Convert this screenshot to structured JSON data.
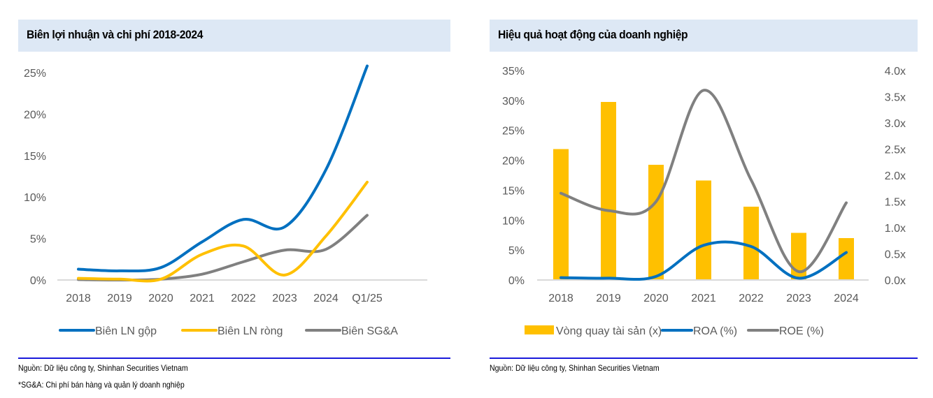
{
  "panels": [
    {
      "title": "Biên lợi nhuận và chi phí 2018-2024",
      "notes": [
        "Nguồn: Dữ liệu công ty, Shinhan Securities Vietnam",
        "*SG&A: Chi phí bán hàng và quản lý doanh nghiệp"
      ]
    },
    {
      "title": "Hiệu quả hoạt động của doanh nghiệp",
      "notes": [
        "Nguồn:  Dữ liệu công ty, Shinhan Securities Vietnam"
      ]
    }
  ],
  "chart_data": [
    {
      "type": "line",
      "title": "Biên lợi nhuận và chi phí 2018-2024",
      "categories": [
        "2018",
        "2019",
        "2020",
        "2021",
        "2022",
        "2023",
        "2024",
        "Q1/25"
      ],
      "yticks": [
        "0%",
        "5%",
        "10%",
        "15%",
        "20%",
        "25%"
      ],
      "ylim": [
        0,
        25
      ],
      "xlabel": "",
      "ylabel": "",
      "grid": false,
      "legend": "bottom",
      "series": [
        {
          "name": "Biên LN gộp",
          "color": "#0070c0",
          "values": [
            1.3,
            1.1,
            1.5,
            4.6,
            7.3,
            6.4,
            13.3,
            25.8
          ]
        },
        {
          "name": "Biên LN ròng",
          "color": "#ffc000",
          "values": [
            0.2,
            0.1,
            0.1,
            3.1,
            4.1,
            0.6,
            5.3,
            11.8
          ]
        },
        {
          "name": "Biên SG&A",
          "color": "#808080",
          "values": [
            0.05,
            0.0,
            0.1,
            0.7,
            2.2,
            3.6,
            3.7,
            7.8
          ]
        }
      ]
    },
    {
      "type": "bar+line",
      "title": "Hiệu quả hoạt động của doanh nghiệp",
      "categories": [
        "2018",
        "2019",
        "2020",
        "2021",
        "2022",
        "2023",
        "2024"
      ],
      "yticks_left": [
        "0%",
        "5%",
        "10%",
        "15%",
        "20%",
        "25%",
        "30%",
        "35%"
      ],
      "ylim_left": [
        0,
        35
      ],
      "yticks_right": [
        "0.0x",
        "0.5x",
        "1.0x",
        "1.5x",
        "2.0x",
        "2.5x",
        "3.0x",
        "3.5x",
        "4.0x"
      ],
      "ylim_right": [
        0,
        4
      ],
      "grid": false,
      "legend": "bottom",
      "series": [
        {
          "name": "Vòng quay tài sản (x)",
          "type": "bar",
          "axis": "right",
          "color": "#ffc000",
          "values": [
            2.5,
            3.4,
            2.2,
            1.9,
            1.4,
            0.9,
            0.8
          ]
        },
        {
          "name": "ROA (%)",
          "type": "line",
          "axis": "left",
          "color": "#0070c0",
          "values": [
            0.4,
            0.3,
            0.6,
            5.8,
            5.6,
            0.3,
            4.6
          ]
        },
        {
          "name": "ROE (%)",
          "type": "line",
          "axis": "left",
          "color": "#808080",
          "values": [
            14.5,
            11.6,
            13.1,
            31.7,
            16.7,
            1.4,
            12.9
          ]
        }
      ]
    }
  ]
}
